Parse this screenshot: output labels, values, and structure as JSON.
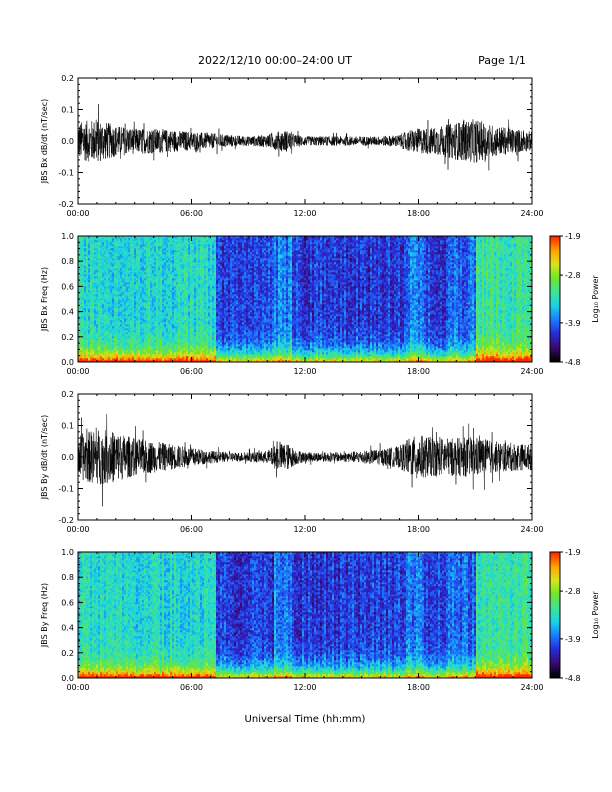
{
  "header": {
    "title": "2022/12/10  00:00–24:00 UT",
    "page": "Page 1/1"
  },
  "colors": {
    "trace": "#000000",
    "colormap": [
      "#000000",
      "#3b0a6e",
      "#2a2ad8",
      "#1a7cff",
      "#19d3e6",
      "#3fe39a",
      "#6fe52b",
      "#d6e51a",
      "#ffa500",
      "#ff2a00"
    ]
  },
  "chart_data": [
    {
      "type": "line",
      "panel": "bx_timeseries",
      "ylabel": "JBS Bx dB/dt (nT/sec)",
      "ylim": [
        -0.2,
        0.2
      ],
      "yticks": [
        "0.2",
        "0.1",
        "0.0",
        "-0.1",
        "-0.2"
      ],
      "xticks": [
        "00:00",
        "06:00",
        "12:00",
        "18:00",
        "24:00"
      ],
      "xlim_hours": [
        0,
        24
      ],
      "envelope": {
        "hours": [
          0,
          1,
          2,
          3,
          4,
          5,
          6,
          7,
          8,
          9,
          10,
          10.5,
          11,
          11.5,
          12,
          13,
          14,
          15,
          16,
          17,
          17.5,
          18,
          19,
          20,
          21,
          22,
          23,
          24
        ],
        "amplitude": [
          0.06,
          0.07,
          0.05,
          0.04,
          0.04,
          0.035,
          0.03,
          0.025,
          0.02,
          0.015,
          0.02,
          0.03,
          0.035,
          0.02,
          0.015,
          0.015,
          0.015,
          0.015,
          0.015,
          0.02,
          0.035,
          0.04,
          0.045,
          0.06,
          0.07,
          0.05,
          0.04,
          0.03
        ]
      }
    },
    {
      "type": "heatmap",
      "panel": "bx_spectrogram",
      "ylabel": "JBS Bx Freq (Hz)",
      "ylim": [
        0.0,
        1.0
      ],
      "yticks": [
        "1.0",
        "0.8",
        "0.6",
        "0.4",
        "0.2",
        "0.0"
      ],
      "xticks": [
        "00:00",
        "06:00",
        "12:00",
        "18:00",
        "24:00"
      ],
      "colorbar": {
        "label": "Log₁₀ Power",
        "range": [
          -4.8,
          -1.9
        ],
        "ticks": [
          "-1.9",
          "-2.8",
          "-3.9",
          "-4.8"
        ]
      }
    },
    {
      "type": "line",
      "panel": "by_timeseries",
      "ylabel": "JBS By dB/dt (nT/sec)",
      "ylim": [
        -0.2,
        0.2
      ],
      "yticks": [
        "0.2",
        "0.1",
        "0.0",
        "-0.1",
        "-0.2"
      ],
      "xticks": [
        "00:00",
        "06:00",
        "12:00",
        "18:00",
        "24:00"
      ],
      "xlim_hours": [
        0,
        24
      ],
      "envelope": {
        "hours": [
          0,
          1,
          2,
          3,
          4,
          5,
          6,
          7,
          8,
          9,
          10,
          10.5,
          11,
          11.5,
          12,
          13,
          14,
          15,
          16,
          17,
          17.5,
          18,
          19,
          20,
          21,
          22,
          23,
          24
        ],
        "amplitude": [
          0.07,
          0.09,
          0.08,
          0.06,
          0.05,
          0.04,
          0.03,
          0.02,
          0.015,
          0.015,
          0.02,
          0.04,
          0.045,
          0.025,
          0.015,
          0.015,
          0.015,
          0.02,
          0.025,
          0.035,
          0.06,
          0.07,
          0.06,
          0.06,
          0.065,
          0.05,
          0.045,
          0.04
        ]
      }
    },
    {
      "type": "heatmap",
      "panel": "by_spectrogram",
      "ylabel": "JBS By Freq (Hz)",
      "ylim": [
        0.0,
        1.0
      ],
      "yticks": [
        "1.0",
        "0.8",
        "0.6",
        "0.4",
        "0.2",
        "0.0"
      ],
      "xticks": [
        "00:00",
        "06:00",
        "12:00",
        "18:00",
        "24:00"
      ],
      "colorbar": {
        "label": "Log₁₀ Power",
        "range": [
          -4.8,
          -1.9
        ],
        "ticks": [
          "-1.9",
          "-2.8",
          "-3.9",
          "-4.8"
        ]
      }
    }
  ],
  "xaxis_label": "Universal Time (hh:mm)"
}
